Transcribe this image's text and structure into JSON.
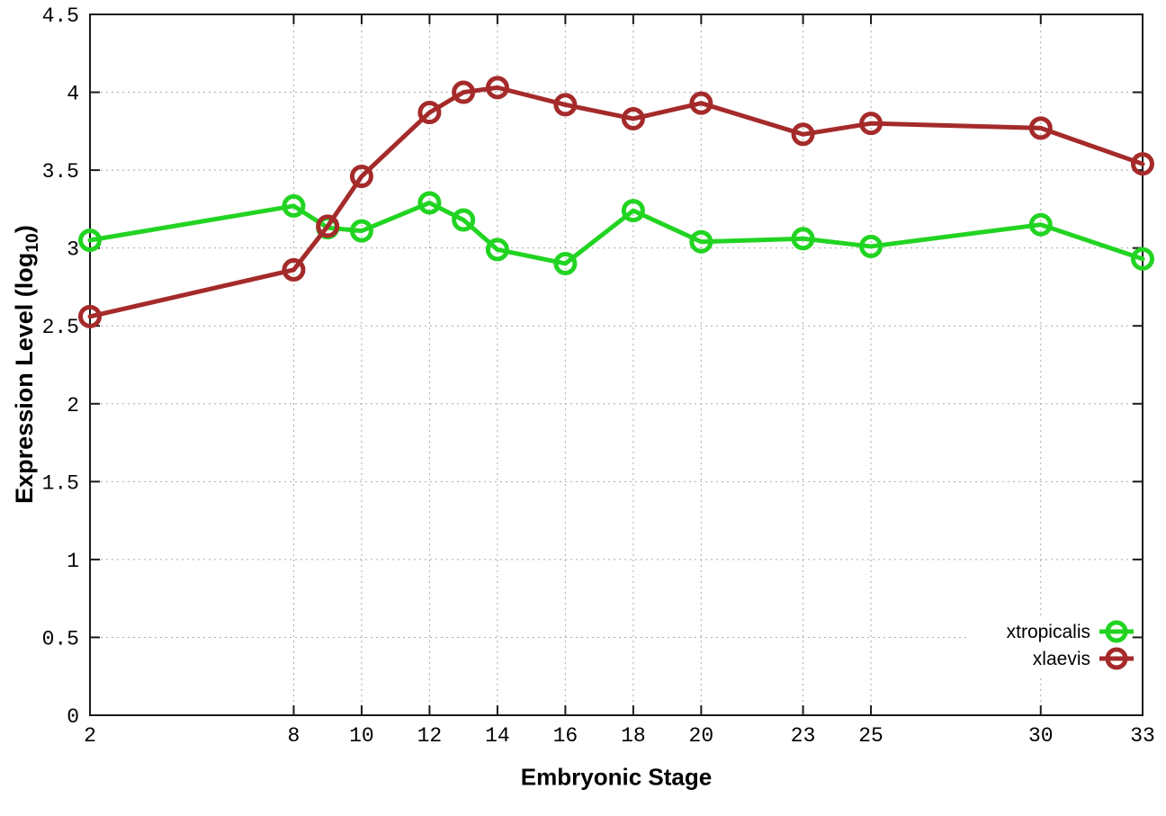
{
  "figure": {
    "background_color": "#ffffff",
    "grid_color": "#a9a9a9",
    "axis_color": "#1a1a1a",
    "text_color": "#000000"
  },
  "chart_data": {
    "type": "line",
    "title": "",
    "xlabel": "Embryonic Stage",
    "ylabel": "Expression Level (log10)",
    "ylabel_parts": {
      "main": "Expression Level (log",
      "sub": "10",
      "end": ")"
    },
    "x": [
      2,
      8,
      9,
      10,
      12,
      13,
      14,
      16,
      18,
      20,
      23,
      25,
      30,
      33
    ],
    "series": [
      {
        "name": "xtropicalis",
        "color": "#22d422",
        "marker": "open-circle",
        "values": [
          3.05,
          3.27,
          3.13,
          3.11,
          3.29,
          3.18,
          2.99,
          2.9,
          3.24,
          3.04,
          3.06,
          3.01,
          3.15,
          2.93
        ]
      },
      {
        "name": "xlaevis",
        "color": "#a52a2a",
        "marker": "open-circle",
        "values": [
          2.56,
          2.86,
          3.14,
          3.46,
          3.87,
          4.0,
          4.03,
          3.92,
          3.83,
          3.93,
          3.73,
          3.8,
          3.77,
          3.54
        ]
      }
    ],
    "xlim": [
      2,
      33
    ],
    "ylim": [
      0,
      4.5
    ],
    "xticks": {
      "values": [
        2,
        8,
        10,
        12,
        14,
        16,
        18,
        20,
        23,
        25,
        30,
        33
      ],
      "labels": [
        "2",
        "8",
        "10",
        "12",
        "14",
        "16",
        "18",
        "20",
        "23",
        "25",
        "30",
        "33"
      ]
    },
    "yticks": {
      "values": [
        0,
        0.5,
        1,
        1.5,
        2,
        2.5,
        3,
        3.5,
        4,
        4.5
      ],
      "labels": [
        "0",
        "0.5",
        "1",
        "1.5",
        "2",
        "2.5",
        "3",
        "3.5",
        "4",
        "4.5"
      ]
    },
    "grid": true,
    "grid_style": "dotted",
    "legend_position": "bottom-right-inside",
    "legend_entries": [
      "xtropicalis",
      "xlaevis"
    ]
  }
}
